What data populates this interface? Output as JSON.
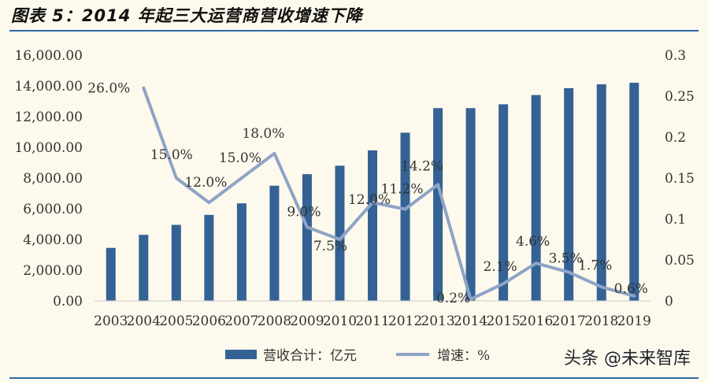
{
  "figure": {
    "title": "图表 5：2014 年起三大运营商营收增速下降",
    "watermark": "头条 @未来智库"
  },
  "chart_data": {
    "type": "bar",
    "categories": [
      "2003",
      "2004",
      "2005",
      "2006",
      "2007",
      "2008",
      "2009",
      "2010",
      "2011",
      "2012",
      "2013",
      "2014",
      "2015",
      "2016",
      "2017",
      "2018",
      "2019"
    ],
    "series": [
      {
        "name": "营收合计：亿元",
        "type": "bar",
        "axis": "left",
        "color": "#346295",
        "values": [
          3450,
          4300,
          4950,
          5600,
          6350,
          7500,
          8250,
          8800,
          9800,
          10950,
          12550,
          12550,
          12800,
          13400,
          13850,
          14100,
          14200
        ]
      },
      {
        "name": "增速：%",
        "type": "line",
        "axis": "right",
        "color": "#8ea4c6",
        "values": [
          null,
          0.26,
          0.15,
          0.12,
          0.15,
          0.18,
          0.09,
          0.075,
          0.12,
          0.112,
          0.142,
          0.002,
          0.021,
          0.046,
          0.035,
          0.017,
          0.006
        ],
        "labels": [
          null,
          "26.0%",
          "15.0%",
          "12.0%",
          "15.0%",
          "18.0%",
          "9.0%",
          "7.5%",
          "12.0%",
          "11.2%",
          "14.2%",
          "0.2%",
          "2.1%",
          "4.6%",
          "3.5%",
          "1.7%",
          "0.6%"
        ]
      }
    ],
    "y_left": {
      "ylim": [
        0,
        16000
      ],
      "ticks": [
        0,
        2000,
        4000,
        6000,
        8000,
        10000,
        12000,
        14000,
        16000
      ],
      "tick_labels": [
        "0.00",
        "2,000.00",
        "4,000.00",
        "6,000.00",
        "8,000.00",
        "10,000.00",
        "12,000.00",
        "14,000.00",
        "16,000.00"
      ]
    },
    "y_right": {
      "ylim": [
        0,
        0.3
      ],
      "ticks": [
        0,
        0.05,
        0.1,
        0.15,
        0.2,
        0.25,
        0.3
      ],
      "tick_labels": [
        "0",
        "0.05",
        "0.1",
        "0.15",
        "0.2",
        "0.25",
        "0.3"
      ]
    },
    "grid": false,
    "legend_position": "bottom-center"
  }
}
